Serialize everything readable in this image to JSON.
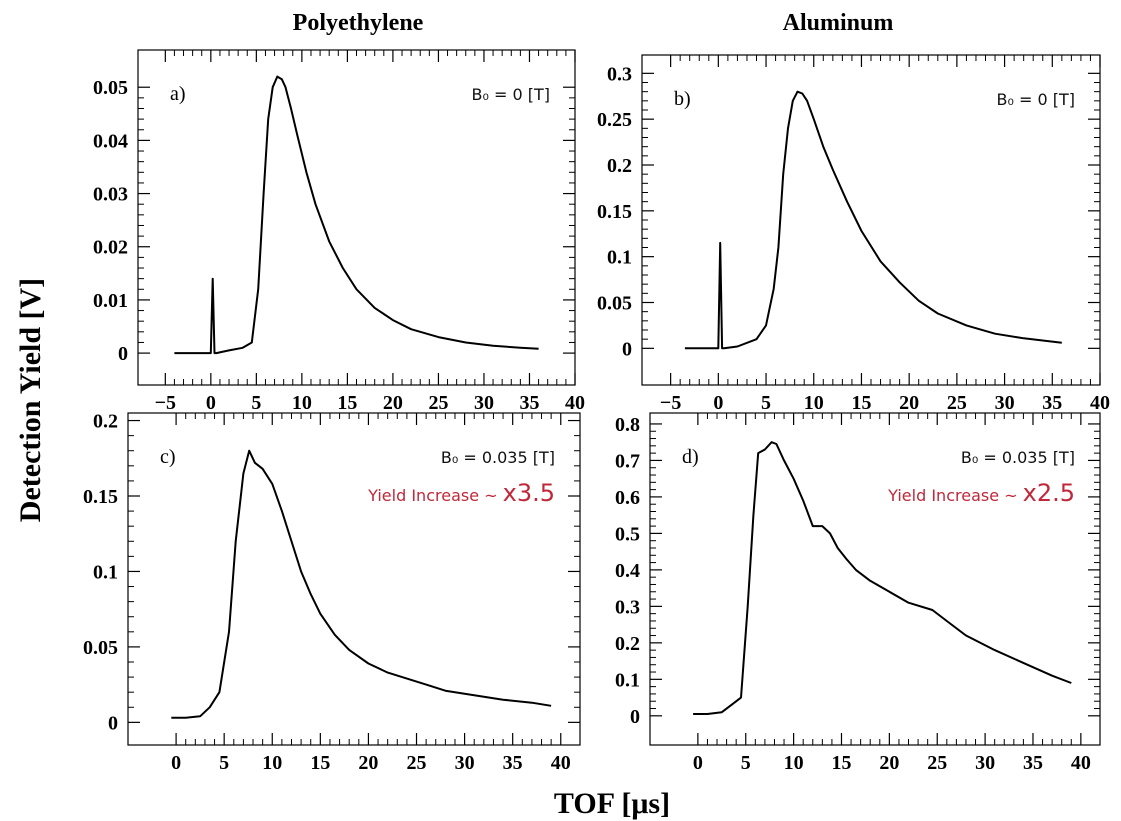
{
  "figure": {
    "columns": [
      "Polyethylene",
      "Aluminum"
    ],
    "ylabel": "Detection Yield [V]",
    "xlabel": "TOF [μs]"
  },
  "chart_data": [
    {
      "type": "line",
      "panel": "a)",
      "material": "Polyethylene",
      "annotation": "B₀ = 0 [T]",
      "xlim": [
        -8,
        40
      ],
      "ylim": [
        -0.006,
        0.057
      ],
      "xticks": [
        -5,
        0,
        5,
        10,
        15,
        20,
        25,
        30,
        35,
        40
      ],
      "yticks": [
        0,
        0.01,
        0.02,
        0.03,
        0.04,
        0.05
      ],
      "ytick_labels": [
        "0",
        "0.01",
        "0.02",
        "0.03",
        "0.04",
        "0.05"
      ],
      "series": [
        {
          "x": [
            -4,
            -2,
            0,
            0.2,
            0.4,
            0.6,
            2,
            3.5,
            4.5,
            5.2,
            5.8,
            6.3,
            6.8,
            7.3,
            7.8,
            8.2,
            8.8,
            9.5,
            10.5,
            11.5,
            13,
            14.5,
            16,
            18,
            20,
            22,
            25,
            28,
            31,
            34,
            36
          ],
          "y": [
            0,
            0,
            0,
            0.014,
            0,
            0,
            0.0005,
            0.001,
            0.002,
            0.012,
            0.03,
            0.044,
            0.05,
            0.052,
            0.0515,
            0.05,
            0.046,
            0.041,
            0.034,
            0.028,
            0.021,
            0.016,
            0.012,
            0.0085,
            0.0062,
            0.0045,
            0.003,
            0.002,
            0.0014,
            0.001,
            0.0008
          ]
        }
      ]
    },
    {
      "type": "line",
      "panel": "b)",
      "material": "Aluminum",
      "annotation": "B₀ = 0 [T]",
      "xlim": [
        -8,
        40
      ],
      "ylim": [
        -0.04,
        0.32
      ],
      "xticks": [
        -5,
        0,
        5,
        10,
        15,
        20,
        25,
        30,
        35,
        40
      ],
      "yticks": [
        0,
        0.05,
        0.1,
        0.15,
        0.2,
        0.25,
        0.3
      ],
      "ytick_labels": [
        "0",
        "0.05",
        "0.1",
        "0.15",
        "0.2",
        "0.25",
        "0.3"
      ],
      "series": [
        {
          "x": [
            -3.5,
            -1,
            0,
            0.2,
            0.4,
            0.6,
            2,
            4,
            5,
            5.8,
            6.3,
            6.8,
            7.3,
            7.8,
            8.3,
            8.8,
            9.3,
            10,
            11,
            12,
            13.5,
            15,
            17,
            19,
            21,
            23,
            26,
            29,
            32,
            36
          ],
          "y": [
            0,
            0,
            0,
            0.115,
            0,
            0,
            0.002,
            0.01,
            0.025,
            0.065,
            0.11,
            0.19,
            0.24,
            0.27,
            0.28,
            0.278,
            0.27,
            0.25,
            0.22,
            0.195,
            0.16,
            0.128,
            0.095,
            0.072,
            0.052,
            0.038,
            0.025,
            0.016,
            0.011,
            0.006
          ]
        }
      ]
    },
    {
      "type": "line",
      "panel": "c)",
      "material": "Polyethylene",
      "annotation": "B₀ = 0.035 [T]",
      "note_prefix": "Yield Increase ~ ",
      "note_factor": "x3.5",
      "xlim": [
        -5,
        42
      ],
      "ylim": [
        -0.015,
        0.205
      ],
      "xticks": [
        0,
        5,
        10,
        15,
        20,
        25,
        30,
        35,
        40
      ],
      "yticks": [
        0,
        0.05,
        0.1,
        0.15,
        0.2
      ],
      "ytick_labels": [
        "0",
        "0.05",
        "0.1",
        "0.15",
        "0.2"
      ],
      "series": [
        {
          "x": [
            -0.5,
            1,
            2.5,
            3.5,
            4.5,
            5.5,
            6.2,
            7,
            7.6,
            8.2,
            9,
            10,
            11,
            12,
            13,
            14,
            15,
            16.5,
            18,
            20,
            22,
            24,
            26,
            28,
            31,
            34,
            37,
            39
          ],
          "y": [
            0.003,
            0.003,
            0.004,
            0.01,
            0.02,
            0.06,
            0.12,
            0.165,
            0.18,
            0.172,
            0.168,
            0.158,
            0.14,
            0.12,
            0.1,
            0.085,
            0.072,
            0.058,
            0.048,
            0.039,
            0.033,
            0.029,
            0.025,
            0.021,
            0.018,
            0.015,
            0.013,
            0.011
          ]
        }
      ]
    },
    {
      "type": "line",
      "panel": "d)",
      "material": "Aluminum",
      "annotation": "B₀ = 0.035 [T]",
      "note_prefix": "Yield Increase ~ ",
      "note_factor": "x2.5",
      "xlim": [
        -5,
        42
      ],
      "ylim": [
        -0.08,
        0.83
      ],
      "xticks": [
        0,
        5,
        10,
        15,
        20,
        25,
        30,
        35,
        40
      ],
      "yticks": [
        0,
        0.1,
        0.2,
        0.3,
        0.4,
        0.5,
        0.6,
        0.7,
        0.8
      ],
      "ytick_labels": [
        "0",
        "0.1",
        "0.2",
        "0.3",
        "0.4",
        "0.5",
        "0.6",
        "0.7",
        "0.8"
      ],
      "series": [
        {
          "x": [
            -0.5,
            1,
            2.5,
            3.5,
            4.5,
            5.2,
            5.8,
            6.3,
            7,
            7.7,
            8.2,
            9,
            10,
            11,
            12,
            13,
            13.8,
            14.6,
            15.5,
            16.5,
            18,
            20,
            22,
            24.5,
            26,
            28,
            31,
            34,
            37,
            39
          ],
          "y": [
            0.005,
            0.005,
            0.01,
            0.03,
            0.05,
            0.3,
            0.55,
            0.72,
            0.73,
            0.75,
            0.745,
            0.7,
            0.65,
            0.59,
            0.52,
            0.52,
            0.5,
            0.46,
            0.43,
            0.4,
            0.37,
            0.34,
            0.31,
            0.29,
            0.26,
            0.22,
            0.18,
            0.145,
            0.11,
            0.09
          ]
        }
      ]
    }
  ]
}
